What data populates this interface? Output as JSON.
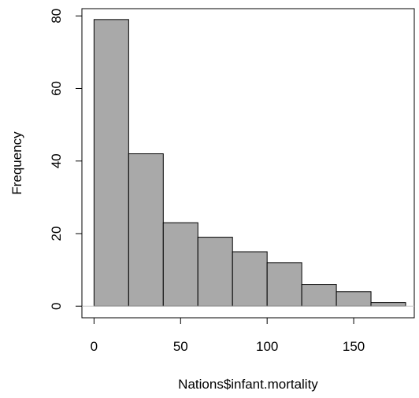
{
  "chart_data": {
    "type": "bar",
    "title": "",
    "xlabel": "Nations$infant.mortality",
    "ylabel": "Frequency",
    "bins": [
      {
        "from": 0,
        "to": 20,
        "count": 79
      },
      {
        "from": 20,
        "to": 40,
        "count": 42
      },
      {
        "from": 40,
        "to": 60,
        "count": 23
      },
      {
        "from": 60,
        "to": 80,
        "count": 19
      },
      {
        "from": 80,
        "to": 100,
        "count": 15
      },
      {
        "from": 100,
        "to": 120,
        "count": 12
      },
      {
        "from": 120,
        "to": 140,
        "count": 6
      },
      {
        "from": 140,
        "to": 160,
        "count": 4
      },
      {
        "from": 160,
        "to": 180,
        "count": 1
      }
    ],
    "xlim": [
      -7,
      185
    ],
    "ylim": [
      -3.2,
      82
    ],
    "x_ticks": [
      0,
      50,
      100,
      150
    ],
    "y_ticks": [
      0,
      20,
      40,
      60,
      80
    ],
    "bar_color": "#a9a9a9",
    "grid": false,
    "legend": "none"
  }
}
